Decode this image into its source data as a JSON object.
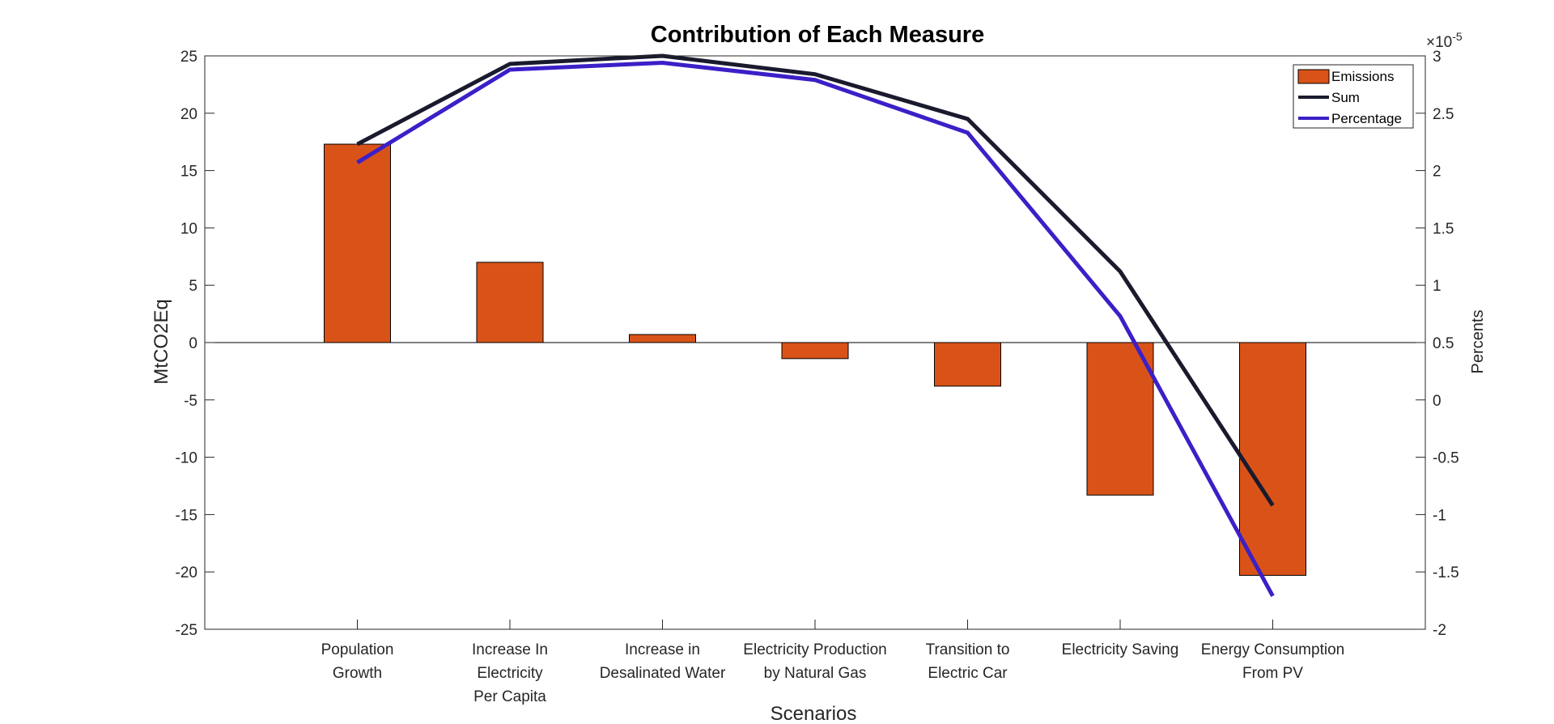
{
  "chart_data": {
    "type": "bar",
    "title": "Contribution of Each Measure",
    "xlabel": "Scenarios",
    "ylabel": "MtCO2Eq",
    "y2label": "Percents",
    "y2_exponent_label": "×10",
    "y2_exponent_power": "-5",
    "categories": [
      [
        "Population",
        "Growth"
      ],
      [
        "Increase In",
        "Electricity",
        "Per Capita"
      ],
      [
        "Increase in",
        "Desalinated Water"
      ],
      [
        "Electricity Production",
        "by Natural Gas"
      ],
      [
        "Transition to",
        "Electric Car"
      ],
      [
        "Electricity Saving"
      ],
      [
        "Energy Consumption",
        "From PV"
      ]
    ],
    "ylim": [
      -25,
      25
    ],
    "yticks": [
      25,
      20,
      15,
      10,
      5,
      0,
      -5,
      -10,
      -15,
      -20,
      -25
    ],
    "y2lim": [
      -2,
      3
    ],
    "y2ticks": [
      "3",
      "2.5",
      "2",
      "1.5",
      "1",
      "0.5",
      "0",
      "-0.5",
      "-1",
      "-1.5",
      "-2"
    ],
    "series": [
      {
        "name": "Emissions",
        "kind": "bar",
        "axis": "left",
        "color": "#D95319",
        "values": [
          17.3,
          7.0,
          0.7,
          -1.4,
          -3.8,
          -13.3,
          -20.3
        ]
      },
      {
        "name": "Sum",
        "kind": "line",
        "axis": "left",
        "color": "#1A1A2E",
        "values": [
          17.3,
          24.3,
          25.0,
          23.4,
          19.5,
          6.2,
          -14.2
        ]
      },
      {
        "name": "Percentage",
        "kind": "line",
        "axis": "right",
        "color": "#3C1FC7",
        "values": [
          2.07,
          2.88,
          2.94,
          2.79,
          2.33,
          0.73,
          -1.71
        ]
      }
    ],
    "grid": false,
    "legend_position": "top-right"
  }
}
